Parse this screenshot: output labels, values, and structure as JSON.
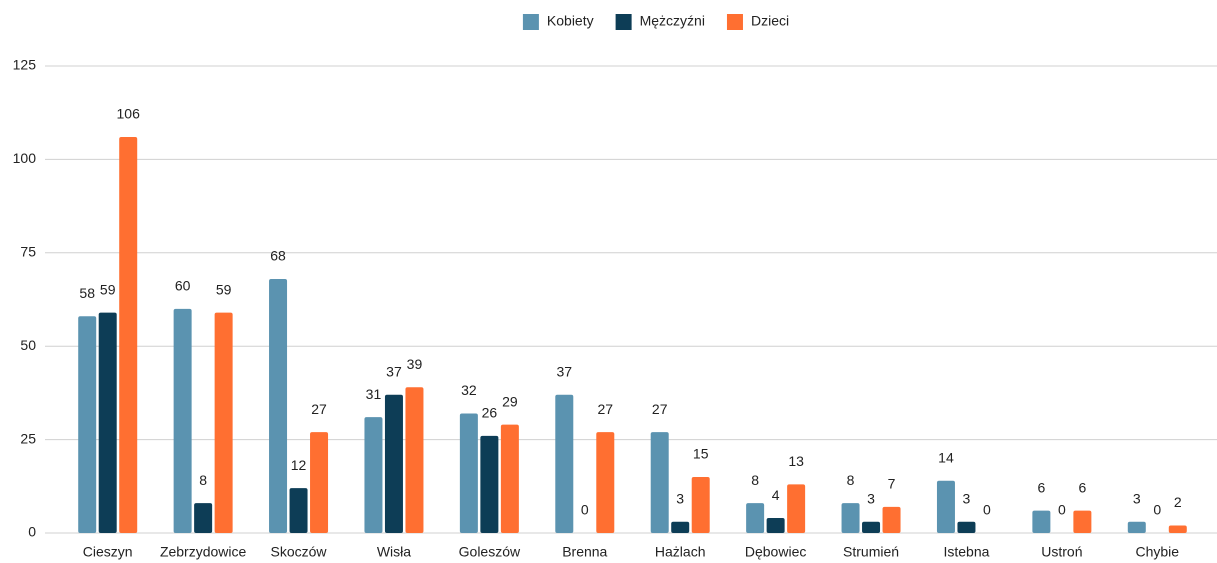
{
  "chart_data": {
    "type": "bar",
    "categories": [
      "Cieszyn",
      "Zebrzydowice",
      "Skoczów",
      "Wisła",
      "Goleszów",
      "Brenna",
      "Hażlach",
      "Dębowiec",
      "Strumień",
      "Istebna",
      "Ustroń",
      "Chybie"
    ],
    "series": [
      {
        "name": "Kobiety",
        "color": "#5b93b0",
        "values": [
          58,
          60,
          68,
          31,
          32,
          37,
          27,
          8,
          8,
          14,
          6,
          3
        ]
      },
      {
        "name": "Mężczyźni",
        "color": "#0d3d56",
        "values": [
          59,
          8,
          12,
          37,
          26,
          0,
          3,
          4,
          3,
          3,
          0,
          0
        ]
      },
      {
        "name": "Dzieci",
        "color": "#ff6f31",
        "values": [
          106,
          59,
          27,
          39,
          29,
          27,
          15,
          13,
          7,
          0,
          6,
          2
        ]
      }
    ],
    "ylim": [
      0,
      125
    ],
    "yticks": [
      0,
      25,
      50,
      75,
      100,
      125
    ],
    "grid": true,
    "legend": "top"
  }
}
